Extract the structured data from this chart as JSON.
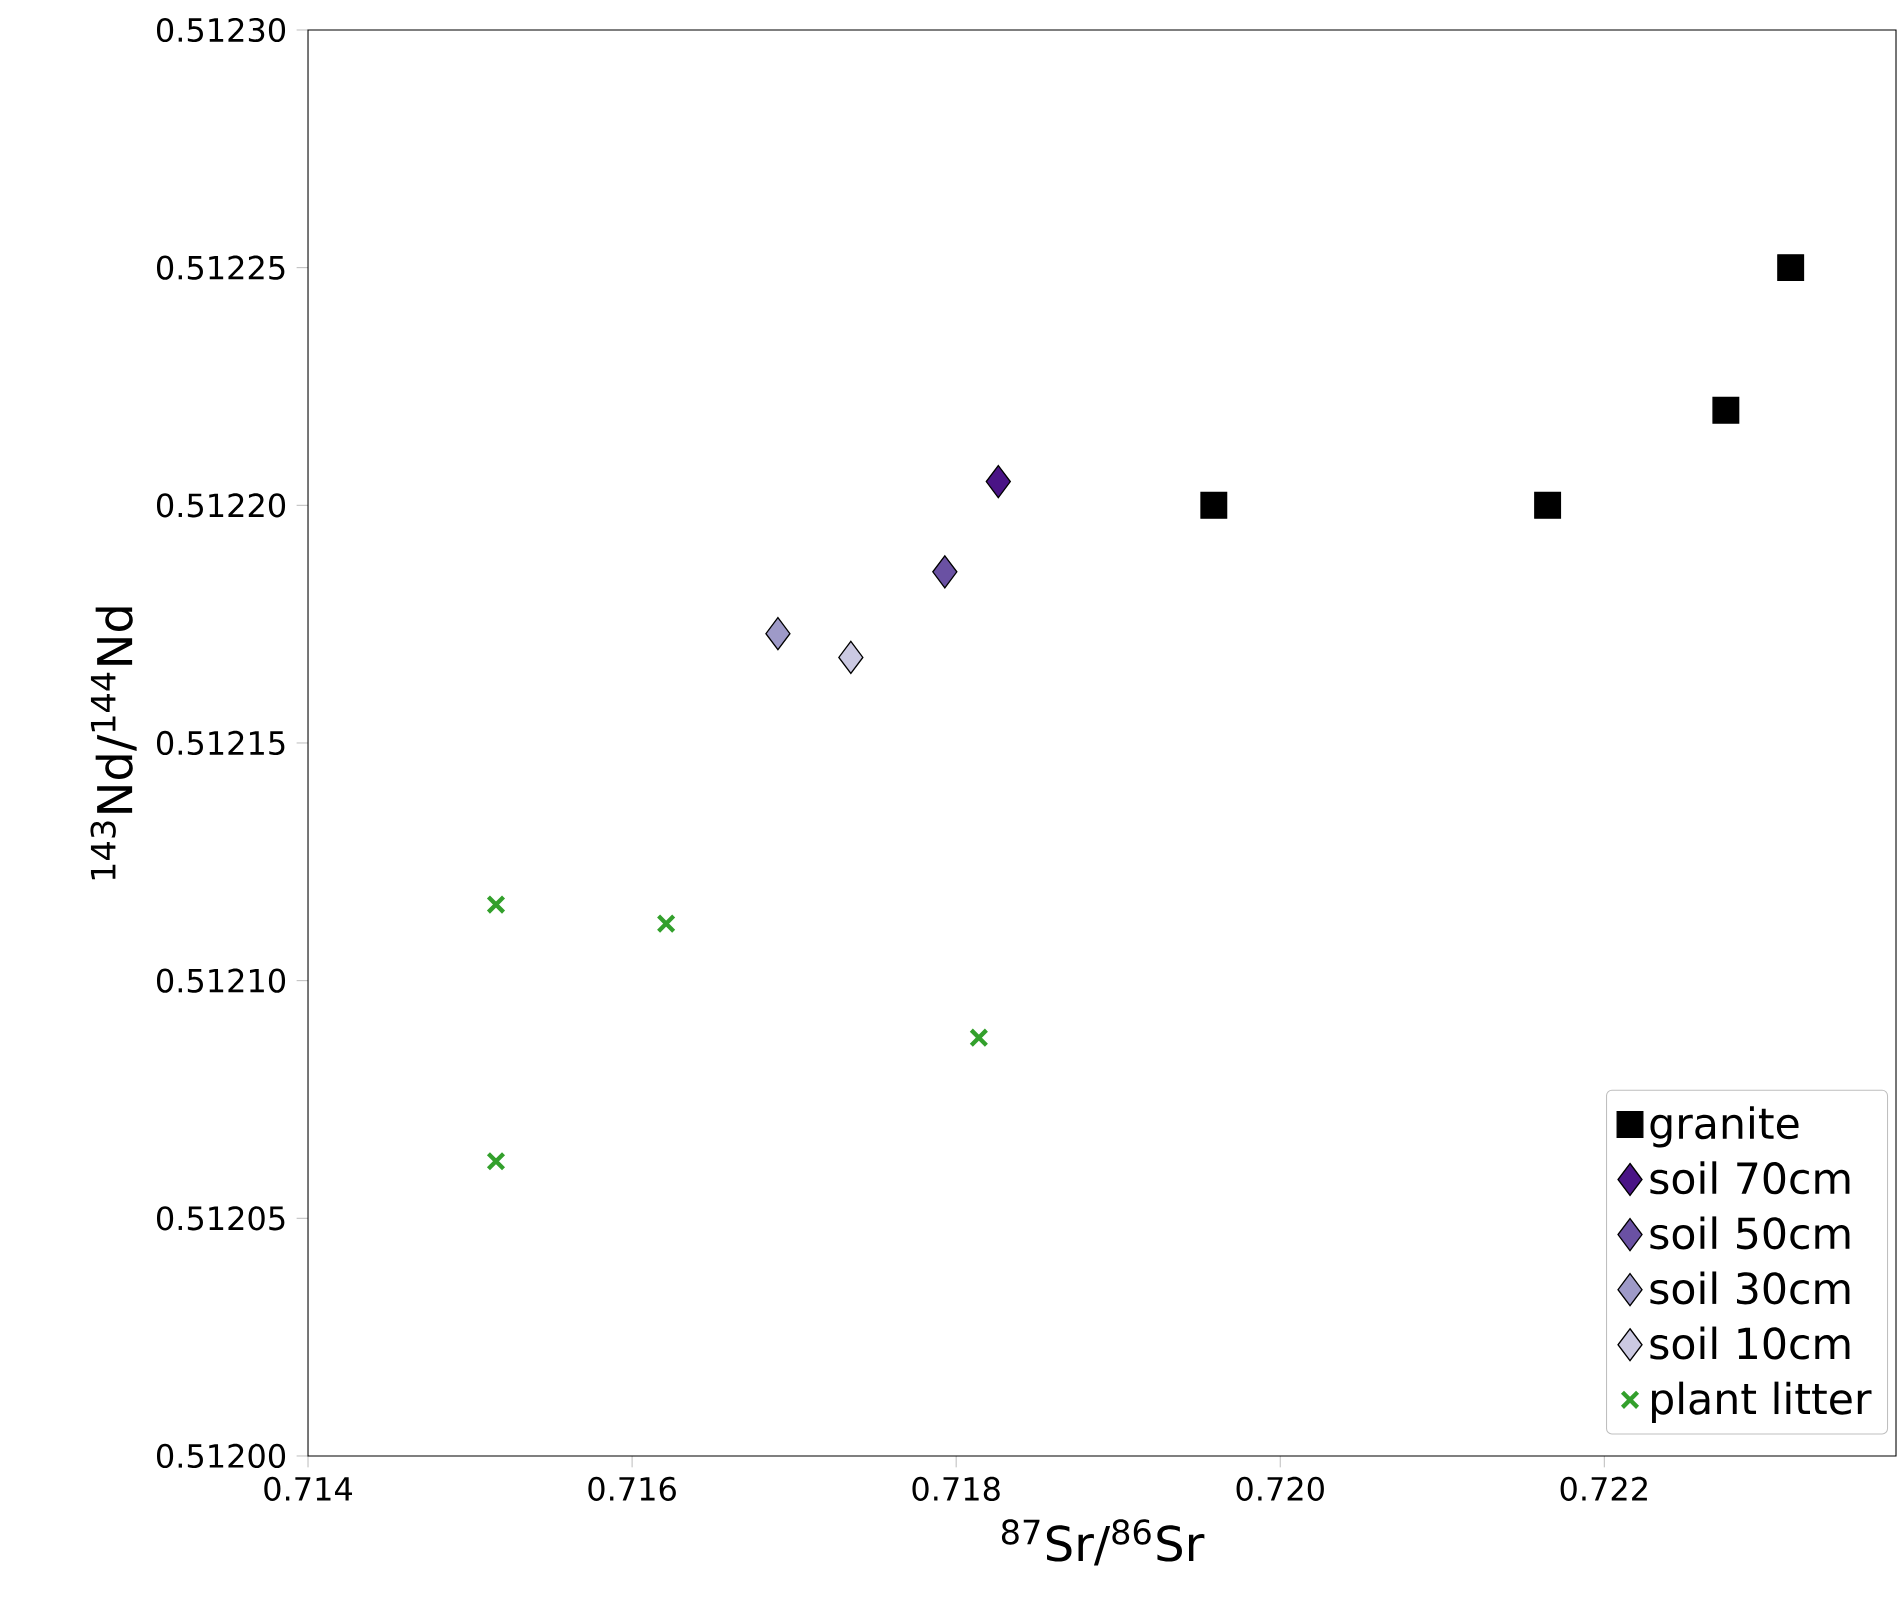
{
  "chart_data": {
    "type": "scatter",
    "xlabel": "$^{87}$Sr/$^{86}$Sr",
    "ylabel": "$^{143}$Nd/$^{144}$Nd",
    "xlim": [
      0.714,
      0.7238
    ],
    "xticks": [
      {
        "value": 0.714,
        "label": "0.714"
      },
      {
        "value": 0.716,
        "label": "0.716"
      },
      {
        "value": 0.718,
        "label": "0.718"
      },
      {
        "value": 0.72,
        "label": "0.720"
      },
      {
        "value": 0.722,
        "label": "0.722"
      }
    ],
    "ylim": [
      0.512,
      0.5123
    ],
    "yticks": [
      {
        "value": 0.512,
        "label": "0.51200"
      },
      {
        "value": 0.51205,
        "label": "0.51205"
      },
      {
        "value": 0.5121,
        "label": "0.51210"
      },
      {
        "value": 0.51215,
        "label": "0.51215"
      },
      {
        "value": 0.5122,
        "label": "0.51220"
      },
      {
        "value": 0.51225,
        "label": "0.51225"
      },
      {
        "value": 0.5123,
        "label": "0.51230"
      }
    ],
    "legend": "bottom right",
    "grid": false,
    "series": [
      {
        "name": "granite",
        "color": "#000000",
        "marker": "square",
        "x": [
          0.71959,
          0.72165,
          0.72275,
          0.72315
        ],
        "values": [
          0.5122,
          0.5122,
          0.51222,
          0.51225
        ]
      },
      {
        "name": "soil 70cm",
        "color": "#4a1486",
        "marker": "diamond",
        "x": [
          0.71826
        ],
        "values": [
          0.512205
        ]
      },
      {
        "name": "soil 50cm",
        "color": "#6a51a3",
        "marker": "diamond",
        "x": [
          0.71793
        ],
        "values": [
          0.512186
        ]
      },
      {
        "name": "soil 30cm",
        "color": "#9e9ac8",
        "marker": "diamond",
        "x": [
          0.7169
        ],
        "values": [
          0.512173
        ]
      },
      {
        "name": "soil 10cm",
        "color": "#cbc9e2",
        "marker": "diamond",
        "x": [
          0.71735
        ],
        "values": [
          0.512168
        ]
      },
      {
        "name": "plant litter",
        "color": "#33a02c",
        "marker": "cross",
        "x": [
          0.71516,
          0.71621,
          0.71814,
          0.71516
        ],
        "values": [
          0.512116,
          0.512112,
          0.512088,
          0.512062
        ]
      }
    ]
  }
}
